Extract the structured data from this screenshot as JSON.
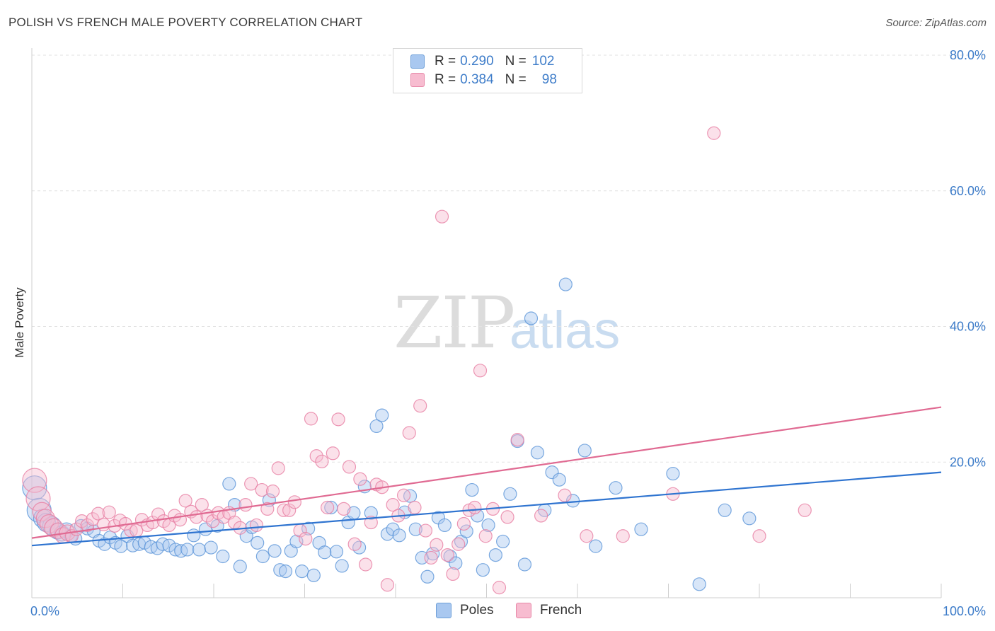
{
  "title": "POLISH VS FRENCH MALE POVERTY CORRELATION CHART",
  "source": "Source: ZipAtlas.com",
  "watermark": {
    "zip": "ZIP",
    "atlas": "atlas"
  },
  "legend": {
    "rows": [
      {
        "r_label": "R = ",
        "r_value": "0.290",
        "n_label": "N = ",
        "n_value": "102",
        "color": "#a9c8f0",
        "border": "#6e9fd8"
      },
      {
        "r_label": "R = ",
        "r_value": "0.384",
        "n_label": "N = ",
        "n_value": "98",
        "color": "#f7bcd0",
        "border": "#e788a8"
      }
    ]
  },
  "bottom_legend": {
    "poles": "Poles",
    "french": "French"
  },
  "chart_data": {
    "type": "scatter",
    "ylabel": "Male Poverty",
    "xlim": [
      0,
      100
    ],
    "ylim": [
      0,
      80
    ],
    "x_tick_labels": [
      "0.0%",
      "100.0%"
    ],
    "y_ticks": [
      20,
      40,
      60,
      80
    ],
    "y_tick_labels": [
      "20.0%",
      "40.0%",
      "60.0%",
      "80.0%"
    ],
    "grid": true,
    "series": [
      {
        "name": "Poles",
        "color": "#5b95d8",
        "fill": "#a9c8f0",
        "trend": {
          "x": [
            0,
            100
          ],
          "y": [
            7.7,
            18.5
          ],
          "color": "#2f74d0"
        },
        "points": [
          [
            0.3,
            16.2
          ],
          [
            0.8,
            12.9
          ],
          [
            1.2,
            11.7
          ],
          [
            1.6,
            11.1
          ],
          [
            2.2,
            10.6
          ],
          [
            2.8,
            9.8
          ],
          [
            3.3,
            9.5
          ],
          [
            3.8,
            9.9
          ],
          [
            4.3,
            9.1
          ],
          [
            4.8,
            8.7
          ],
          [
            5.4,
            10.6
          ],
          [
            6.1,
            10.2
          ],
          [
            6.8,
            9.8
          ],
          [
            7.4,
            8.4
          ],
          [
            8.0,
            7.9
          ],
          [
            8.6,
            8.9
          ],
          [
            9.2,
            8.1
          ],
          [
            9.8,
            7.6
          ],
          [
            10.5,
            9.1
          ],
          [
            11.1,
            7.7
          ],
          [
            11.8,
            7.9
          ],
          [
            12.4,
            8.1
          ],
          [
            13.1,
            7.5
          ],
          [
            13.8,
            7.3
          ],
          [
            14.4,
            7.9
          ],
          [
            15.1,
            7.7
          ],
          [
            15.8,
            7.1
          ],
          [
            16.4,
            6.9
          ],
          [
            17.1,
            7.1
          ],
          [
            17.8,
            9.2
          ],
          [
            18.4,
            7.1
          ],
          [
            19.1,
            10.1
          ],
          [
            19.7,
            7.4
          ],
          [
            20.4,
            10.6
          ],
          [
            21.0,
            6.1
          ],
          [
            21.7,
            16.8
          ],
          [
            22.3,
            13.7
          ],
          [
            22.9,
            4.6
          ],
          [
            23.6,
            9.1
          ],
          [
            24.2,
            10.4
          ],
          [
            24.8,
            8.1
          ],
          [
            25.4,
            6.1
          ],
          [
            26.1,
            14.4
          ],
          [
            26.7,
            6.9
          ],
          [
            27.3,
            4.1
          ],
          [
            27.9,
            3.9
          ],
          [
            28.5,
            6.9
          ],
          [
            29.1,
            8.3
          ],
          [
            29.7,
            3.9
          ],
          [
            30.4,
            10.2
          ],
          [
            31.0,
            3.3
          ],
          [
            31.6,
            8.1
          ],
          [
            32.2,
            6.7
          ],
          [
            32.9,
            13.3
          ],
          [
            33.5,
            6.8
          ],
          [
            34.1,
            4.7
          ],
          [
            34.8,
            11.1
          ],
          [
            35.4,
            12.5
          ],
          [
            36.0,
            7.4
          ],
          [
            36.6,
            16.4
          ],
          [
            37.3,
            12.5
          ],
          [
            37.9,
            25.3
          ],
          [
            38.5,
            26.9
          ],
          [
            39.1,
            9.4
          ],
          [
            39.7,
            10.1
          ],
          [
            40.4,
            9.2
          ],
          [
            41.0,
            12.6
          ],
          [
            41.6,
            15.0
          ],
          [
            42.2,
            10.1
          ],
          [
            42.9,
            5.9
          ],
          [
            43.5,
            3.1
          ],
          [
            44.1,
            6.5
          ],
          [
            44.7,
            11.8
          ],
          [
            45.4,
            10.7
          ],
          [
            46.0,
            6.1
          ],
          [
            46.6,
            5.1
          ],
          [
            47.2,
            8.3
          ],
          [
            47.8,
            9.8
          ],
          [
            48.4,
            15.9
          ],
          [
            49.0,
            12.1
          ],
          [
            49.6,
            4.1
          ],
          [
            50.2,
            10.7
          ],
          [
            51.0,
            6.3
          ],
          [
            51.8,
            8.3
          ],
          [
            52.6,
            15.3
          ],
          [
            53.4,
            23.1
          ],
          [
            54.2,
            4.9
          ],
          [
            54.9,
            41.2
          ],
          [
            55.6,
            21.4
          ],
          [
            56.4,
            12.9
          ],
          [
            57.2,
            18.5
          ],
          [
            58.0,
            17.4
          ],
          [
            58.7,
            46.2
          ],
          [
            59.5,
            14.3
          ],
          [
            60.8,
            21.7
          ],
          [
            62.0,
            7.6
          ],
          [
            64.2,
            16.2
          ],
          [
            67.0,
            10.1
          ],
          [
            70.5,
            18.3
          ],
          [
            73.4,
            2.0
          ],
          [
            76.2,
            12.9
          ],
          [
            78.9,
            11.7
          ]
        ]
      },
      {
        "name": "French",
        "color": "#e77ea2",
        "fill": "#f7bcd0",
        "trend": {
          "x": [
            0,
            100
          ],
          "y": [
            8.8,
            28.1
          ],
          "color": "#e06a92"
        },
        "points": [
          [
            0.3,
            17.3
          ],
          [
            0.7,
            14.6
          ],
          [
            1.1,
            12.7
          ],
          [
            1.5,
            11.7
          ],
          [
            1.9,
            10.9
          ],
          [
            2.4,
            10.3
          ],
          [
            2.9,
            9.9
          ],
          [
            3.4,
            9.2
          ],
          [
            3.9,
            9.6
          ],
          [
            4.4,
            9.1
          ],
          [
            4.9,
            10.1
          ],
          [
            5.5,
            11.3
          ],
          [
            6.1,
            10.7
          ],
          [
            6.7,
            11.6
          ],
          [
            7.3,
            12.4
          ],
          [
            7.9,
            10.8
          ],
          [
            8.5,
            12.6
          ],
          [
            9.1,
            10.6
          ],
          [
            9.7,
            11.4
          ],
          [
            10.3,
            10.9
          ],
          [
            10.9,
            9.9
          ],
          [
            11.5,
            9.9
          ],
          [
            12.1,
            11.5
          ],
          [
            12.7,
            10.7
          ],
          [
            13.3,
            11.1
          ],
          [
            13.9,
            12.3
          ],
          [
            14.5,
            11.3
          ],
          [
            15.1,
            10.7
          ],
          [
            15.7,
            12.1
          ],
          [
            16.3,
            11.5
          ],
          [
            16.9,
            14.3
          ],
          [
            17.5,
            12.7
          ],
          [
            18.1,
            11.9
          ],
          [
            18.7,
            13.7
          ],
          [
            19.3,
            12.1
          ],
          [
            19.9,
            11.3
          ],
          [
            20.5,
            12.5
          ],
          [
            21.1,
            11.9
          ],
          [
            21.7,
            12.5
          ],
          [
            22.3,
            11.1
          ],
          [
            22.9,
            10.3
          ],
          [
            23.5,
            13.7
          ],
          [
            24.1,
            16.8
          ],
          [
            24.7,
            10.7
          ],
          [
            25.3,
            15.9
          ],
          [
            25.9,
            13.1
          ],
          [
            26.5,
            15.7
          ],
          [
            27.1,
            19.1
          ],
          [
            27.7,
            12.9
          ],
          [
            28.3,
            12.9
          ],
          [
            28.9,
            14.1
          ],
          [
            29.5,
            9.9
          ],
          [
            30.1,
            8.7
          ],
          [
            30.7,
            26.4
          ],
          [
            31.3,
            20.9
          ],
          [
            31.9,
            20.1
          ],
          [
            32.5,
            13.3
          ],
          [
            33.1,
            21.3
          ],
          [
            33.7,
            26.3
          ],
          [
            34.3,
            13.1
          ],
          [
            34.9,
            19.3
          ],
          [
            35.5,
            7.9
          ],
          [
            36.1,
            17.5
          ],
          [
            36.7,
            4.9
          ],
          [
            37.3,
            11.1
          ],
          [
            37.9,
            16.7
          ],
          [
            38.5,
            16.3
          ],
          [
            39.1,
            1.9
          ],
          [
            39.7,
            13.7
          ],
          [
            40.3,
            12.1
          ],
          [
            40.9,
            15.1
          ],
          [
            41.5,
            24.3
          ],
          [
            42.1,
            13.3
          ],
          [
            42.7,
            28.3
          ],
          [
            43.3,
            9.9
          ],
          [
            43.9,
            5.9
          ],
          [
            44.5,
            7.8
          ],
          [
            45.1,
            56.2
          ],
          [
            45.7,
            6.3
          ],
          [
            46.3,
            3.5
          ],
          [
            46.9,
            7.9
          ],
          [
            47.5,
            10.9
          ],
          [
            48.1,
            12.9
          ],
          [
            48.7,
            13.3
          ],
          [
            49.3,
            33.5
          ],
          [
            49.9,
            9.1
          ],
          [
            50.7,
            13.1
          ],
          [
            51.4,
            1.5
          ],
          [
            52.3,
            11.9
          ],
          [
            53.4,
            23.3
          ],
          [
            56.0,
            12.1
          ],
          [
            58.6,
            15.1
          ],
          [
            61.0,
            9.1
          ],
          [
            65.0,
            9.1
          ],
          [
            70.5,
            15.3
          ],
          [
            75.0,
            68.5
          ],
          [
            80.0,
            9.1
          ],
          [
            85.0,
            12.9
          ]
        ]
      }
    ]
  }
}
